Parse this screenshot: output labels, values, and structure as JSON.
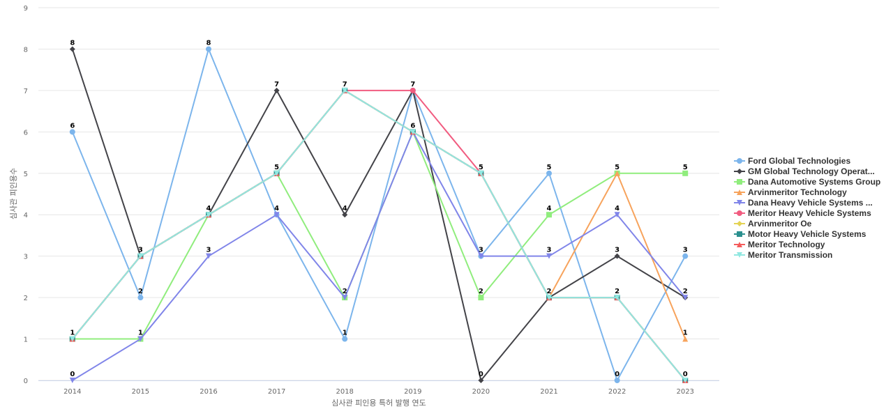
{
  "chart_data": {
    "type": "line",
    "xlabel": "심사관 피인용 특허 발행 연도",
    "ylabel": "심사관 피인용수",
    "ylim": [
      0,
      9
    ],
    "yticks": [
      0,
      1,
      2,
      3,
      4,
      5,
      6,
      7,
      8,
      9
    ],
    "categories": [
      "2014",
      "2015",
      "2016",
      "2017",
      "2018",
      "2019",
      "2020",
      "2021",
      "2022",
      "2023"
    ],
    "grid": true,
    "legend_position": "right",
    "series": [
      {
        "name": "Ford Global Technologies",
        "color": "#7cb5ec",
        "marker": "circle",
        "values": [
          6,
          2,
          8,
          4,
          1,
          7,
          3,
          5,
          0,
          3
        ]
      },
      {
        "name": "GM Global Technology Operat...",
        "color": "#434348",
        "marker": "diamond",
        "values": [
          8,
          3,
          4,
          7,
          4,
          7,
          0,
          2,
          3,
          2
        ]
      },
      {
        "name": "Dana Automotive Systems Group",
        "color": "#90ed7d",
        "marker": "square",
        "values": [
          1,
          1,
          4,
          5,
          2,
          6,
          2,
          4,
          5,
          5
        ]
      },
      {
        "name": "Arvinmeritor Technology",
        "color": "#f7a35c",
        "marker": "triangle",
        "values": [
          1,
          3,
          4,
          5,
          7,
          6,
          5,
          2,
          5,
          1
        ]
      },
      {
        "name": "Dana Heavy Vehicle Systems ...",
        "color": "#8085e9",
        "marker": "triangle-down",
        "values": [
          0,
          1,
          3,
          4,
          2,
          6,
          3,
          3,
          4,
          2
        ]
      },
      {
        "name": "Meritor Heavy Vehicle Systems",
        "color": "#f15c80",
        "marker": "circle",
        "values": [
          1,
          3,
          4,
          5,
          7,
          7,
          5,
          2,
          2,
          0
        ]
      },
      {
        "name": "Arvinmeritor Oe",
        "color": "#e4d354",
        "marker": "diamond",
        "values": [
          1,
          3,
          4,
          5,
          7,
          6,
          5,
          2,
          2,
          0
        ]
      },
      {
        "name": "Motor Heavy Vehicle Systems",
        "color": "#2b908f",
        "marker": "square",
        "values": [
          1,
          3,
          4,
          5,
          7,
          6,
          5,
          2,
          2,
          0
        ]
      },
      {
        "name": "Meritor Technology",
        "color": "#f45b5b",
        "marker": "triangle",
        "values": [
          1,
          3,
          4,
          5,
          7,
          6,
          5,
          2,
          2,
          0
        ]
      },
      {
        "name": "Meritor Transmission",
        "color": "#91e8e1",
        "marker": "triangle-down",
        "values": [
          1,
          3,
          4,
          5,
          7,
          6,
          5,
          2,
          2,
          0
        ]
      }
    ],
    "data_labels": [
      {
        "x": "2014",
        "values": [
          8,
          6,
          1,
          0
        ]
      },
      {
        "x": "2015",
        "values": [
          3,
          2,
          1
        ]
      },
      {
        "x": "2016",
        "values": [
          8,
          4,
          3
        ]
      },
      {
        "x": "2017",
        "values": [
          7,
          5,
          4
        ]
      },
      {
        "x": "2018",
        "values": [
          7,
          4,
          2,
          1
        ]
      },
      {
        "x": "2019",
        "values": [
          7,
          6
        ]
      },
      {
        "x": "2020",
        "values": [
          5,
          3,
          2,
          0
        ]
      },
      {
        "x": "2021",
        "values": [
          5,
          4,
          3,
          2
        ]
      },
      {
        "x": "2022",
        "values": [
          5,
          4,
          3,
          2,
          0
        ]
      },
      {
        "x": "2023",
        "values": [
          5,
          3,
          2,
          1,
          0
        ]
      }
    ]
  }
}
